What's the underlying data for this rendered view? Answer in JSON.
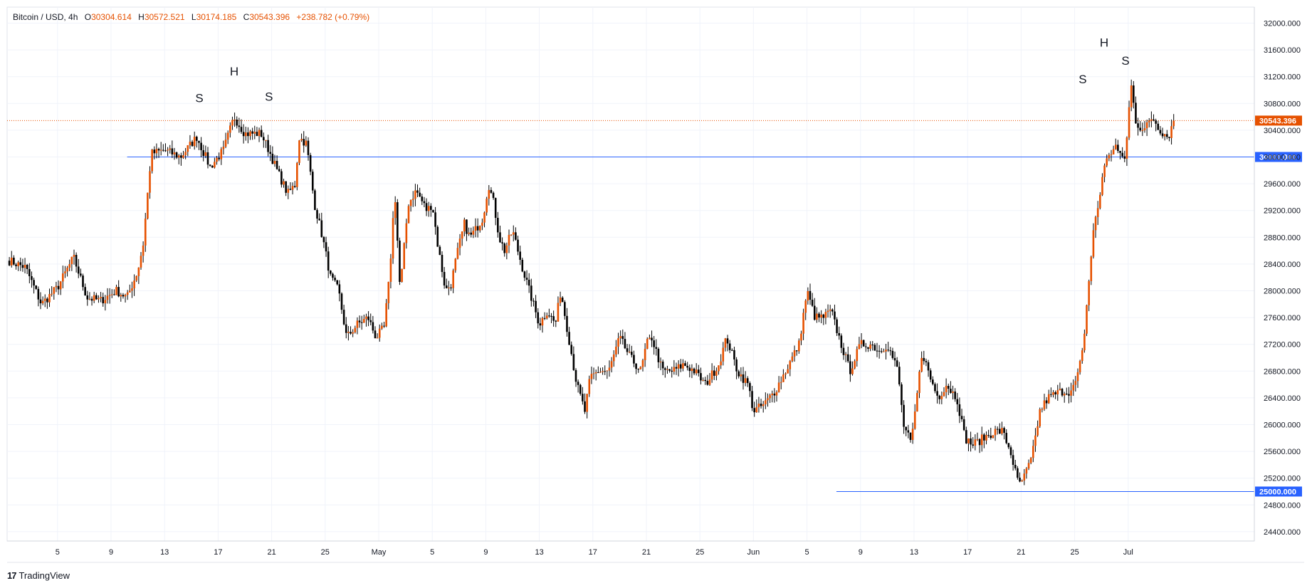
{
  "header": {
    "symbol": "Bitcoin / USD, 4h",
    "o_label": "O",
    "o_value": "30304.614",
    "h_label": "H",
    "h_value": "30572.521",
    "l_label": "L",
    "l_value": "30174.185",
    "c_label": "C",
    "c_value": "30543.396",
    "change": "+238.782 (+0.79%)"
  },
  "brand": {
    "logo": "17",
    "name": "TradingView"
  },
  "colors": {
    "up": "#e65100",
    "down": "#000000",
    "level_line": "#2962ff",
    "last_price": "#e65100",
    "grid": "#f0f3fa",
    "axis_text": "#131722"
  },
  "chart_data": {
    "type": "candlestick",
    "title": "",
    "xlabel": "",
    "ylabel": "",
    "ylim": [
      24100,
      32200
    ],
    "y_ticks": [
      "32000.000",
      "31600.000",
      "31200.000",
      "30800.000",
      "30400.000",
      "30000.000",
      "29600.000",
      "29200.000",
      "28800.000",
      "28400.000",
      "28000.000",
      "27600.000",
      "27200.000",
      "26800.000",
      "26400.000",
      "26000.000",
      "25600.000",
      "25200.000",
      "24800.000",
      "24400.000"
    ],
    "x_ticks": [
      "5",
      "9",
      "13",
      "17",
      "21",
      "25",
      "May",
      "5",
      "9",
      "13",
      "17",
      "21",
      "25",
      "Jun",
      "5",
      "9",
      "13",
      "17",
      "21",
      "25",
      "Jul"
    ],
    "grid": true,
    "last_price": {
      "value": 30543.396,
      "label": "30543.396"
    },
    "levels": [
      {
        "value": 30000,
        "label": "30000.000",
        "from_tick": 1.3
      },
      {
        "value": 25000,
        "label": "25000.000",
        "from_tick": 14.55
      }
    ],
    "annotations": [
      {
        "text": "S",
        "tick_pos": 2.65,
        "price": 30820
      },
      {
        "text": "H",
        "tick_pos": 3.3,
        "price": 31220
      },
      {
        "text": "S",
        "tick_pos": 3.95,
        "price": 30840
      },
      {
        "text": "S",
        "tick_pos": 19.15,
        "price": 31100
      },
      {
        "text": "H",
        "tick_pos": 19.55,
        "price": 31650
      },
      {
        "text": "S",
        "tick_pos": 19.95,
        "price": 31380
      }
    ],
    "close_path": [
      [
        -0.9,
        28450
      ],
      [
        -0.6,
        28350
      ],
      [
        -0.3,
        27800
      ],
      [
        0.0,
        28050
      ],
      [
        0.3,
        28500
      ],
      [
        0.55,
        27900
      ],
      [
        0.8,
        27850
      ],
      [
        1.1,
        28000
      ],
      [
        1.3,
        27900
      ],
      [
        1.5,
        28300
      ],
      [
        1.6,
        28700
      ],
      [
        1.75,
        30050
      ],
      [
        2.0,
        30100
      ],
      [
        2.3,
        30000
      ],
      [
        2.6,
        30300
      ],
      [
        2.85,
        29850
      ],
      [
        3.1,
        30100
      ],
      [
        3.3,
        30600
      ],
      [
        3.5,
        30350
      ],
      [
        3.8,
        30350
      ],
      [
        3.95,
        30100
      ],
      [
        4.1,
        29800
      ],
      [
        4.3,
        29450
      ],
      [
        4.45,
        29600
      ],
      [
        4.5,
        30300
      ],
      [
        4.65,
        30200
      ],
      [
        4.8,
        29300
      ],
      [
        4.95,
        28800
      ],
      [
        5.1,
        28200
      ],
      [
        5.25,
        28000
      ],
      [
        5.4,
        27300
      ],
      [
        5.6,
        27500
      ],
      [
        5.8,
        27600
      ],
      [
        5.95,
        27300
      ],
      [
        6.1,
        27450
      ],
      [
        6.2,
        28200
      ],
      [
        6.3,
        29500
      ],
      [
        6.4,
        28000
      ],
      [
        6.55,
        29300
      ],
      [
        6.7,
        29500
      ],
      [
        6.9,
        29200
      ],
      [
        7.0,
        29300
      ],
      [
        7.1,
        28700
      ],
      [
        7.25,
        28000
      ],
      [
        7.35,
        28100
      ],
      [
        7.45,
        28500
      ],
      [
        7.6,
        29000
      ],
      [
        7.7,
        28800
      ],
      [
        7.8,
        28900
      ],
      [
        7.95,
        29100
      ],
      [
        8.05,
        29600
      ],
      [
        8.15,
        29300
      ],
      [
        8.25,
        28800
      ],
      [
        8.35,
        28600
      ],
      [
        8.5,
        28900
      ],
      [
        8.7,
        28300
      ],
      [
        8.85,
        27900
      ],
      [
        9.0,
        27500
      ],
      [
        9.15,
        27700
      ],
      [
        9.3,
        27500
      ],
      [
        9.4,
        28000
      ],
      [
        9.55,
        27300
      ],
      [
        9.7,
        26600
      ],
      [
        9.85,
        26200
      ],
      [
        9.95,
        26700
      ],
      [
        10.1,
        26800
      ],
      [
        10.3,
        26800
      ],
      [
        10.5,
        27300
      ],
      [
        10.7,
        27000
      ],
      [
        10.9,
        26800
      ],
      [
        11.0,
        27200
      ],
      [
        11.1,
        27300
      ],
      [
        11.3,
        26800
      ],
      [
        11.5,
        26800
      ],
      [
        11.7,
        26900
      ],
      [
        11.9,
        26800
      ],
      [
        12.1,
        26600
      ],
      [
        12.35,
        26900
      ],
      [
        12.5,
        27300
      ],
      [
        12.7,
        26800
      ],
      [
        12.9,
        26600
      ],
      [
        13.0,
        26200
      ],
      [
        13.2,
        26300
      ],
      [
        13.4,
        26500
      ],
      [
        13.6,
        26800
      ],
      [
        13.85,
        27200
      ],
      [
        14.0,
        28000
      ],
      [
        14.15,
        27600
      ],
      [
        14.3,
        27600
      ],
      [
        14.45,
        27700
      ],
      [
        14.6,
        27300
      ],
      [
        14.8,
        26800
      ],
      [
        15.0,
        27200
      ],
      [
        15.2,
        27200
      ],
      [
        15.35,
        27100
      ],
      [
        15.5,
        27200
      ],
      [
        15.7,
        26800
      ],
      [
        15.8,
        26000
      ],
      [
        15.95,
        25700
      ],
      [
        16.05,
        26400
      ],
      [
        16.15,
        27100
      ],
      [
        16.3,
        26700
      ],
      [
        16.45,
        26400
      ],
      [
        16.6,
        26600
      ],
      [
        16.8,
        26400
      ],
      [
        16.95,
        25800
      ],
      [
        17.1,
        25700
      ],
      [
        17.3,
        25800
      ],
      [
        17.5,
        25900
      ],
      [
        17.65,
        25900
      ],
      [
        17.8,
        25600
      ],
      [
        17.95,
        25100
      ],
      [
        18.05,
        25200
      ],
      [
        18.2,
        25500
      ],
      [
        18.35,
        26200
      ],
      [
        18.5,
        26400
      ],
      [
        18.75,
        26500
      ],
      [
        18.95,
        26500
      ],
      [
        19.05,
        26700
      ],
      [
        19.15,
        27100
      ],
      [
        19.25,
        28000
      ],
      [
        19.35,
        28900
      ],
      [
        19.45,
        29300
      ],
      [
        19.55,
        29900
      ],
      [
        19.65,
        30000
      ],
      [
        19.75,
        30200
      ],
      [
        19.85,
        30000
      ],
      [
        19.95,
        30000
      ],
      [
        20.05,
        31100
      ],
      [
        20.15,
        30500
      ],
      [
        20.3,
        30400
      ],
      [
        20.45,
        30600
      ],
      [
        20.6,
        30400
      ],
      [
        20.75,
        30300
      ],
      [
        20.85,
        30543
      ]
    ]
  }
}
